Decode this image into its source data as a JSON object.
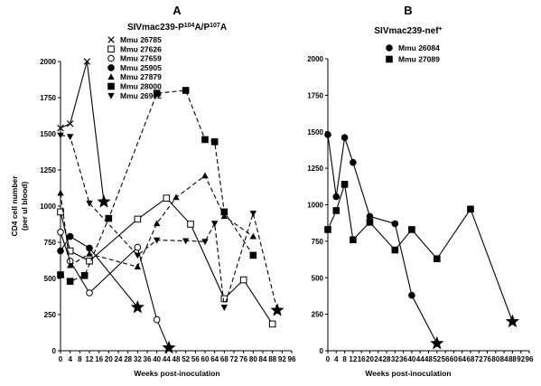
{
  "chart_data": [
    {
      "type": "line",
      "panel": "A",
      "title": "SIVmac239-P",
      "title_sup1": "104",
      "title_mid": "A/P",
      "title_sup2": "107",
      "title_end": "A",
      "xlabel": "Weeks post-inoculation",
      "ylabel": "CD4 cell number",
      "ylabel2": "(per ul blood)",
      "xlim": [
        0,
        96
      ],
      "ylim": [
        0,
        2000
      ],
      "xticks": [
        "0",
        "4",
        "8",
        "12",
        "16",
        "20",
        "24",
        "28",
        "32",
        "36",
        "40",
        "44",
        "48",
        "52",
        "56",
        "60",
        "64",
        "68",
        "72",
        "76",
        "80",
        "84",
        "88",
        "92",
        "96"
      ],
      "yticks": [
        "0",
        "250",
        "500",
        "750",
        "1000",
        "1250",
        "1500",
        "1750",
        "2000"
      ],
      "series": [
        {
          "name": "Mmu 26785",
          "marker": "x",
          "dash": "solid",
          "points": [
            [
              0,
              1540
            ],
            [
              4,
              1570
            ],
            [
              11,
              2000
            ],
            [
              18,
              1030
            ]
          ],
          "end_marker": "star",
          "end_index": 3
        },
        {
          "name": "Mmu 27626",
          "marker": "square-open",
          "dash": "solid",
          "points": [
            [
              0,
              960
            ],
            [
              4,
              690
            ],
            [
              12,
              620
            ],
            [
              32,
              910
            ],
            [
              44,
              1055
            ],
            [
              54,
              875
            ],
            [
              68,
              360
            ],
            [
              76,
              490
            ],
            [
              88,
              185
            ]
          ]
        },
        {
          "name": "Mmu 27659",
          "marker": "circle-open",
          "dash": "solid",
          "points": [
            [
              0,
              820
            ],
            [
              4,
              620
            ],
            [
              12,
              400
            ],
            [
              32,
              715
            ],
            [
              40,
              215
            ],
            [
              45,
              20
            ]
          ],
          "end_marker": "star",
          "end_index": 5
        },
        {
          "name": "Mmu 25905",
          "marker": "circle",
          "dash": "solid",
          "points": [
            [
              0,
              690
            ],
            [
              4,
              790
            ],
            [
              12,
              710
            ],
            [
              32,
              300
            ]
          ],
          "end_marker": "star",
          "end_index": 3
        },
        {
          "name": "Mmu 27879",
          "marker": "triangle",
          "dash": "dashed",
          "points": [
            [
              0,
              1090
            ],
            [
              4,
              590
            ],
            [
              12,
              670
            ],
            [
              32,
              580
            ],
            [
              40,
              880
            ],
            [
              48,
              1060
            ],
            [
              60,
              1210
            ],
            [
              68,
              930
            ],
            [
              80,
              790
            ]
          ]
        },
        {
          "name": "Mmu 28000",
          "marker": "square",
          "dash": "dashed",
          "points": [
            [
              0,
              525
            ],
            [
              4,
              480
            ],
            [
              10,
              520
            ],
            [
              20,
              915
            ],
            [
              40,
              1780
            ],
            [
              52,
              1800
            ],
            [
              60,
              1460
            ],
            [
              64,
              1445
            ],
            [
              68,
              960
            ],
            [
              80,
              660
            ]
          ]
        },
        {
          "name": "Mmu 26902",
          "marker": "triangle-down",
          "dash": "dashed",
          "points": [
            [
              0,
              1490
            ],
            [
              4,
              1480
            ],
            [
              12,
              1020
            ],
            [
              32,
              660
            ],
            [
              40,
              765
            ],
            [
              52,
              760
            ],
            [
              60,
              755
            ],
            [
              64,
              880
            ],
            [
              68,
              300
            ],
            [
              80,
              950
            ],
            [
              90,
              280
            ]
          ],
          "end_marker": "star",
          "end_index": 10
        }
      ]
    },
    {
      "type": "line",
      "panel": "B",
      "title": "SIVmac239-nef",
      "title_sup": "+",
      "xlabel": "Weeks post-inoculation",
      "xlim": [
        0,
        96
      ],
      "ylim": [
        0,
        2000
      ],
      "xticks": [
        "0",
        "4",
        "8",
        "12",
        "16",
        "20",
        "24",
        "28",
        "32",
        "36",
        "40",
        "44",
        "48",
        "52",
        "56",
        "60",
        "64",
        "68",
        "72",
        "76",
        "80",
        "84",
        "88",
        "92",
        "96"
      ],
      "yticks": [
        "0",
        "250",
        "500",
        "750",
        "1000",
        "1250",
        "1500",
        "1750",
        "2000"
      ],
      "series": [
        {
          "name": "Mmu 26084",
          "marker": "circle",
          "dash": "solid",
          "points": [
            [
              0,
              1480
            ],
            [
              4,
              1055
            ],
            [
              8,
              1460
            ],
            [
              12,
              1290
            ],
            [
              20,
              920
            ],
            [
              32,
              870
            ],
            [
              40,
              380
            ],
            [
              52,
              50
            ]
          ],
          "end_marker": "star",
          "end_index": 7
        },
        {
          "name": "Mmu 27089",
          "marker": "square",
          "dash": "solid",
          "points": [
            [
              0,
              830
            ],
            [
              4,
              960
            ],
            [
              8,
              1140
            ],
            [
              12,
              760
            ],
            [
              20,
              880
            ],
            [
              32,
              690
            ],
            [
              40,
              830
            ],
            [
              52,
              630
            ],
            [
              68,
              970
            ],
            [
              88,
              200
            ]
          ],
          "end_marker": "star",
          "end_index": 9
        }
      ]
    }
  ]
}
